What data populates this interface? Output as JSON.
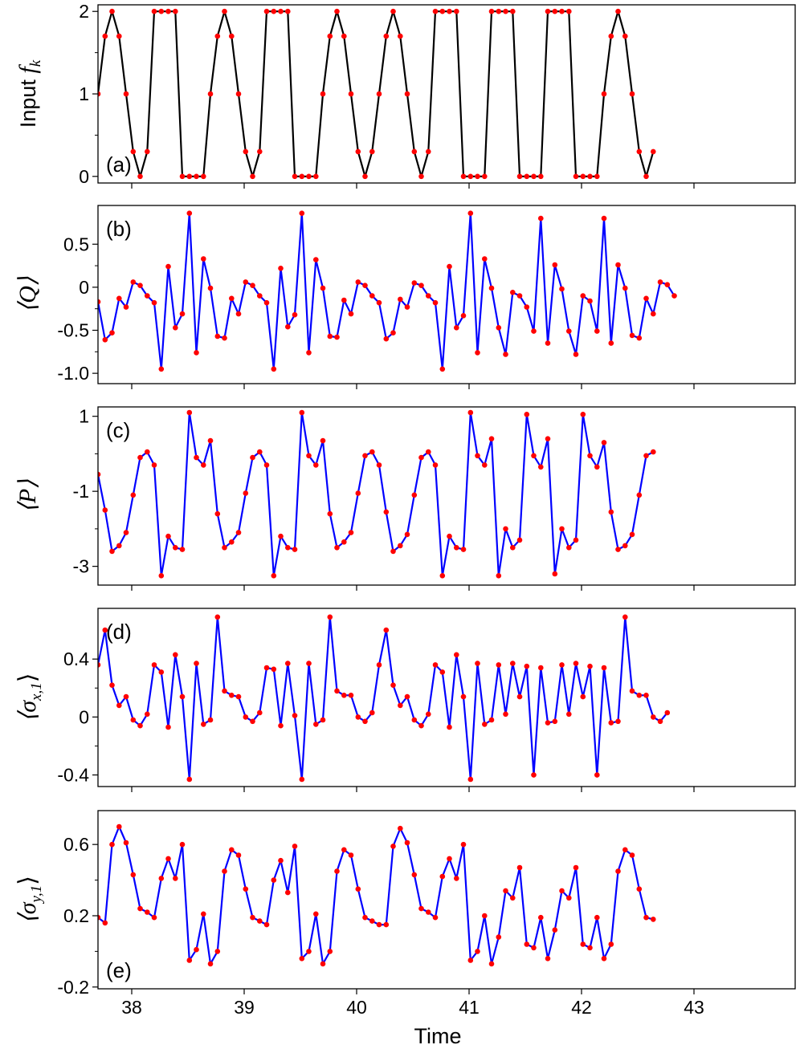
{
  "figure": {
    "xlabel": "Time"
  },
  "colors": {
    "input_line": "#000000",
    "response_line": "#0000ff",
    "marker": "#ff0000"
  },
  "chart_data": [
    {
      "type": "line",
      "tag": "(a)",
      "ylabel": "Input",
      "ylabel_math": "f",
      "ylabel_sub": "k",
      "line_color": "#000000",
      "marker_color": "#ff0000",
      "xlim": [
        37.7,
        43.9
      ],
      "ylim": [
        -0.08,
        2.08
      ],
      "yticks": [
        0,
        1,
        2
      ],
      "yticklabels": [
        "0",
        "1",
        "2"
      ],
      "xticks": [
        38,
        39,
        40,
        41,
        42,
        43
      ],
      "show_xticklabels": false,
      "x0": 37.7,
      "dx": 0.0625,
      "values": [
        1,
        1.7,
        2,
        1.7,
        1,
        0.3,
        0,
        0.3,
        2,
        2,
        2,
        2,
        0,
        0,
        0,
        0,
        1,
        1.7,
        2,
        1.7,
        1,
        0.3,
        0,
        0.3,
        2,
        2,
        2,
        2,
        0,
        0,
        0,
        0,
        1,
        1.7,
        2,
        1.7,
        1,
        0.3,
        0,
        0.3,
        1,
        1.7,
        2,
        1.7,
        1,
        0.3,
        0,
        0.3,
        2,
        2,
        2,
        2,
        0,
        0,
        0,
        0,
        2,
        2,
        2,
        2,
        0,
        0,
        0,
        0,
        2,
        2,
        2,
        2,
        0,
        0,
        0,
        0,
        1,
        1.7,
        2,
        1.7,
        1,
        0.3,
        0,
        0.3
      ]
    },
    {
      "type": "line",
      "tag": "(b)",
      "ylabel": "⟨Q⟩",
      "line_color": "#0000ff",
      "marker_color": "#ff0000",
      "xlim": [
        37.7,
        43.9
      ],
      "ylim": [
        -1.12,
        0.95
      ],
      "yticks": [
        0.5,
        0,
        -0.5,
        -1.0
      ],
      "yticklabels": [
        "0.5",
        "0",
        "-0.5",
        "-1.0"
      ],
      "xticks": [
        38,
        39,
        40,
        41,
        42,
        43
      ],
      "show_xticklabels": false,
      "x0": 37.7,
      "dx": 0.0625,
      "values": [
        -0.17,
        -0.61,
        -0.53,
        -0.13,
        -0.23,
        0.06,
        0.02,
        -0.1,
        -0.18,
        -0.95,
        0.24,
        -0.47,
        -0.31,
        0.86,
        -0.76,
        0.33,
        -0.01,
        -0.57,
        -0.59,
        -0.13,
        -0.31,
        0.06,
        0.02,
        -0.1,
        -0.18,
        -0.95,
        0.22,
        -0.46,
        -0.32,
        0.86,
        -0.76,
        0.32,
        -0.01,
        -0.57,
        -0.58,
        -0.15,
        -0.31,
        0.06,
        0.02,
        -0.1,
        -0.18,
        -0.6,
        -0.53,
        -0.14,
        -0.23,
        0.05,
        0.02,
        -0.1,
        -0.18,
        -0.95,
        0.24,
        -0.47,
        -0.33,
        0.86,
        -0.76,
        0.33,
        -0.01,
        -0.47,
        -0.78,
        -0.06,
        -0.1,
        -0.23,
        -0.51,
        0.8,
        -0.65,
        0.26,
        -0.02,
        -0.51,
        -0.78,
        -0.1,
        -0.16,
        -0.51,
        0.8,
        -0.65,
        0.26,
        -0.01,
        -0.56,
        -0.59,
        -0.13,
        -0.31,
        0.06,
        0.03,
        -0.1
      ]
    },
    {
      "type": "line",
      "tag": "(c)",
      "ylabel": "⟨P⟩",
      "line_color": "#0000ff",
      "marker_color": "#ff0000",
      "xlim": [
        37.7,
        43.9
      ],
      "ylim": [
        -3.5,
        1.25
      ],
      "yticks": [
        1,
        -1,
        -3
      ],
      "yticklabels": [
        "1",
        "-1",
        "-3"
      ],
      "xticks": [
        38,
        39,
        40,
        41,
        42,
        43
      ],
      "show_xticklabels": false,
      "x0": 37.7,
      "dx": 0.0625,
      "values": [
        -0.55,
        -1.5,
        -2.6,
        -2.45,
        -2.1,
        -1.1,
        -0.1,
        0.05,
        -0.3,
        -3.25,
        -2.2,
        -2.5,
        -2.55,
        1.1,
        -0.1,
        -0.3,
        0.35,
        -1.6,
        -2.5,
        -2.35,
        -2.1,
        -1.05,
        -0.1,
        0.05,
        -0.3,
        -3.25,
        -2.2,
        -2.5,
        -2.55,
        1.1,
        -0.05,
        -0.3,
        0.35,
        -1.6,
        -2.5,
        -2.35,
        -2.1,
        -1.05,
        -0.05,
        0.05,
        -0.3,
        -1.55,
        -2.6,
        -2.45,
        -2.15,
        -1.1,
        -0.1,
        0.05,
        -0.3,
        -3.25,
        -2.2,
        -2.5,
        -2.55,
        1.1,
        -0.05,
        -0.3,
        0.4,
        -3.25,
        -2.0,
        -2.5,
        -2.3,
        1.05,
        -0.05,
        -0.35,
        0.4,
        -3.2,
        -2.0,
        -2.5,
        -2.3,
        1.05,
        -0.05,
        -0.35,
        0.3,
        -1.55,
        -2.55,
        -2.45,
        -2.15,
        -1.1,
        -0.05,
        0.05
      ]
    },
    {
      "type": "line",
      "tag": "(d)",
      "ylabel": "⟨σ",
      "ylabel_sub": "x,1",
      "ylabel_close": "⟩",
      "line_color": "#0000ff",
      "marker_color": "#ff0000",
      "xlim": [
        37.7,
        43.9
      ],
      "ylim": [
        -0.48,
        0.75
      ],
      "yticks": [
        0.4,
        0,
        -0.4
      ],
      "yticklabels": [
        "0.4",
        "0",
        "-0.4"
      ],
      "xticks": [
        38,
        39,
        40,
        41,
        42,
        43
      ],
      "show_xticklabels": false,
      "x0": 37.7,
      "dx": 0.0625,
      "values": [
        0.36,
        0.6,
        0.22,
        0.08,
        0.14,
        -0.02,
        -0.06,
        0.02,
        0.36,
        0.31,
        -0.07,
        0.43,
        0.14,
        -0.43,
        0.37,
        -0.05,
        -0.02,
        0.69,
        0.18,
        0.15,
        0.14,
        0.0,
        -0.03,
        0.03,
        0.34,
        0.33,
        -0.06,
        0.37,
        0.01,
        -0.43,
        0.37,
        -0.05,
        -0.02,
        0.69,
        0.18,
        0.15,
        0.15,
        0.0,
        -0.03,
        0.03,
        0.36,
        0.6,
        0.22,
        0.08,
        0.14,
        -0.02,
        -0.06,
        0.02,
        0.36,
        0.31,
        -0.07,
        0.43,
        0.14,
        -0.43,
        0.37,
        -0.05,
        -0.02,
        0.36,
        0.02,
        0.37,
        0.14,
        0.35,
        -0.4,
        0.34,
        -0.04,
        -0.03,
        0.36,
        0.02,
        0.37,
        0.14,
        0.35,
        -0.4,
        0.34,
        -0.04,
        -0.03,
        0.69,
        0.18,
        0.15,
        0.15,
        0.0,
        -0.03,
        0.03
      ]
    },
    {
      "type": "line",
      "tag": "(e)",
      "ylabel": "⟨σ",
      "ylabel_sub": "y,1",
      "ylabel_close": "⟩",
      "line_color": "#0000ff",
      "marker_color": "#ff0000",
      "xlim": [
        37.7,
        43.9
      ],
      "ylim": [
        -0.21,
        0.79
      ],
      "yticks": [
        0.6,
        0.2,
        -0.2
      ],
      "yticklabels": [
        "0.6",
        "0.2",
        "-0.2"
      ],
      "xticks": [
        38,
        39,
        40,
        41,
        42,
        43
      ],
      "show_xticklabels": true,
      "xticklabels": [
        "38",
        "39",
        "40",
        "41",
        "42",
        "43"
      ],
      "x0": 37.7,
      "dx": 0.0625,
      "values": [
        0.19,
        0.16,
        0.6,
        0.7,
        0.61,
        0.43,
        0.24,
        0.22,
        0.19,
        0.41,
        0.52,
        0.41,
        0.6,
        -0.05,
        0.01,
        0.21,
        -0.07,
        0.0,
        0.45,
        0.57,
        0.54,
        0.35,
        0.19,
        0.17,
        0.15,
        0.4,
        0.51,
        0.33,
        0.59,
        -0.04,
        0.0,
        0.21,
        -0.07,
        0.0,
        0.45,
        0.57,
        0.54,
        0.35,
        0.19,
        0.17,
        0.15,
        0.15,
        0.59,
        0.69,
        0.61,
        0.43,
        0.24,
        0.22,
        0.19,
        0.42,
        0.52,
        0.41,
        0.6,
        -0.05,
        0.0,
        0.2,
        -0.07,
        0.08,
        0.34,
        0.3,
        0.47,
        0.04,
        0.02,
        0.19,
        -0.04,
        0.12,
        0.34,
        0.3,
        0.47,
        0.04,
        0.02,
        0.19,
        -0.04,
        0.04,
        0.45,
        0.57,
        0.54,
        0.35,
        0.19,
        0.18
      ]
    }
  ]
}
